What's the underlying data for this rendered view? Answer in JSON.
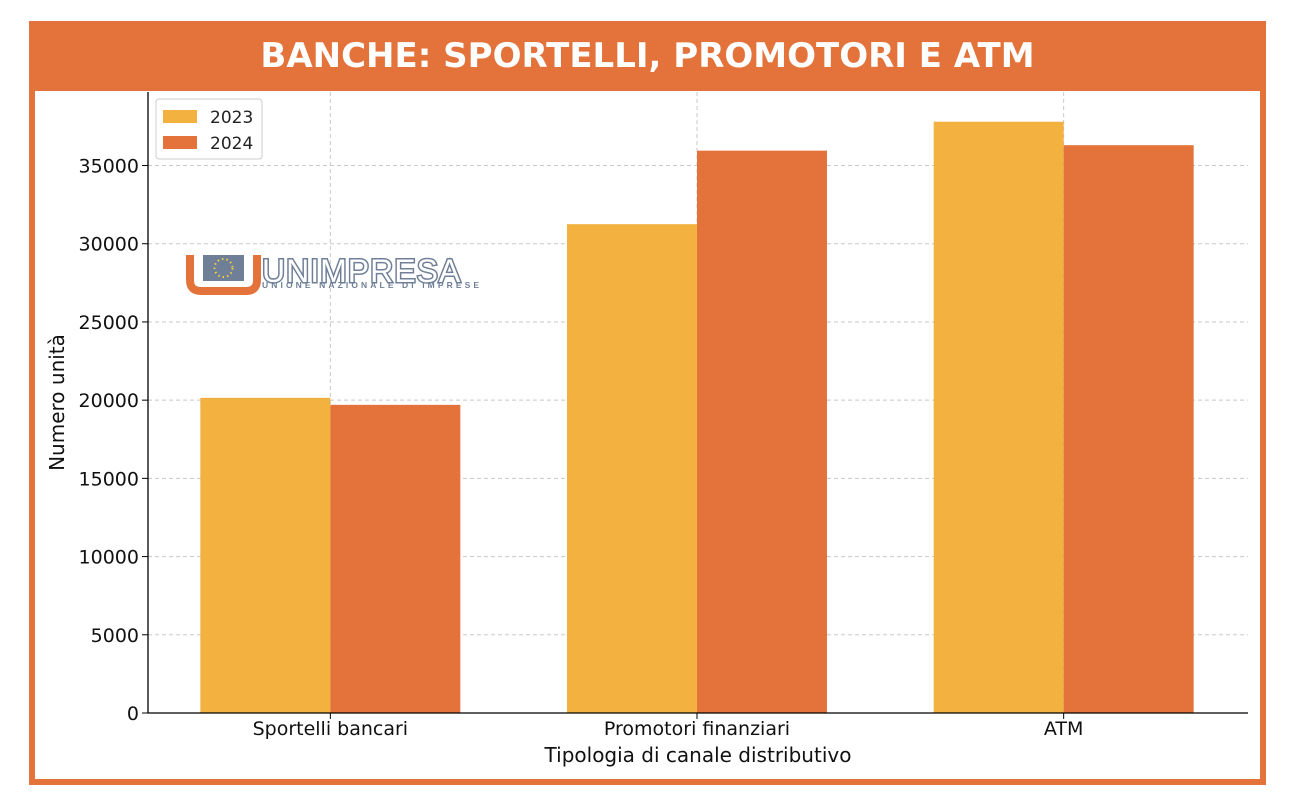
{
  "header": {
    "title": "BANCHE: SPORTELLI, PROMOTORI E ATM"
  },
  "logo": {
    "name": "UNIMPRESA",
    "tagline": "UNIONE NAZIONALE DI IMPRESE"
  },
  "colors": {
    "frame": "#e3733a",
    "series_2023": "#f3b13f",
    "series_2024": "#e3733a",
    "logo_text": "#6f7f98"
  },
  "chart_data": {
    "type": "bar",
    "title": "",
    "categories": [
      "Sportelli bancari",
      "Promotori finanziari",
      "ATM"
    ],
    "series": [
      {
        "name": "2023",
        "values": [
          20150,
          31250,
          37800
        ]
      },
      {
        "name": "2024",
        "values": [
          19700,
          35950,
          36300
        ]
      }
    ],
    "xlabel": "Tipologia di canale distributivo",
    "ylabel": "Numero unità",
    "ylim": [
      0,
      39700
    ],
    "yticks": [
      0,
      5000,
      10000,
      15000,
      20000,
      25000,
      30000,
      35000
    ],
    "grid": true,
    "legend_position": "top-left"
  }
}
